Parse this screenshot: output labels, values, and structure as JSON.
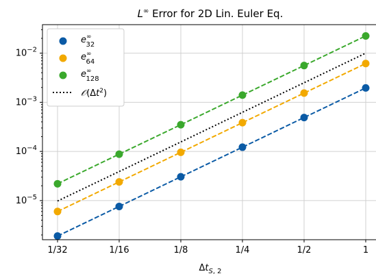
{
  "chart_data": {
    "type": "scatter",
    "title": "L^∞ Error for 2D Lin. Euler Eq.",
    "xlabel": "Δt_{S,2}",
    "ylabel": "",
    "x_scale": "log2",
    "y_scale": "log10",
    "categories": [
      "1/32",
      "1/16",
      "1/8",
      "1/4",
      "1/2",
      "1"
    ],
    "x": [
      0.03125,
      0.0625,
      0.125,
      0.25,
      0.5,
      1
    ],
    "ylim": [
      1.6e-06,
      0.038
    ],
    "y_ticks": [
      "10^-5",
      "10^-4",
      "10^-3",
      "10^-2"
    ],
    "grid": true,
    "legend_position": "upper-left",
    "series": [
      {
        "name": "e^∞_32",
        "color": "#0a5aa5",
        "style": "markers+dashed-fit",
        "values": [
          1.9e-06,
          7.6e-06,
          3.05e-05,
          0.000122,
          0.00049,
          0.00196
        ]
      },
      {
        "name": "e^∞_64",
        "color": "#f2a900",
        "style": "markers+dashed-fit",
        "values": [
          6e-06,
          2.4e-05,
          9.6e-05,
          0.000385,
          0.00154,
          0.00615
        ]
      },
      {
        "name": "e^∞_128",
        "color": "#3aa82c",
        "style": "markers+dashed-fit",
        "values": [
          2.2e-05,
          8.8e-05,
          0.00035,
          0.0014,
          0.0056,
          0.0224
        ]
      },
      {
        "name": "𝒪(Δt²)",
        "color": "#000000",
        "style": "dotted-line",
        "values": [
          9.8e-06,
          3.9e-05,
          0.000156,
          0.000625,
          0.0025,
          0.01
        ]
      }
    ]
  }
}
